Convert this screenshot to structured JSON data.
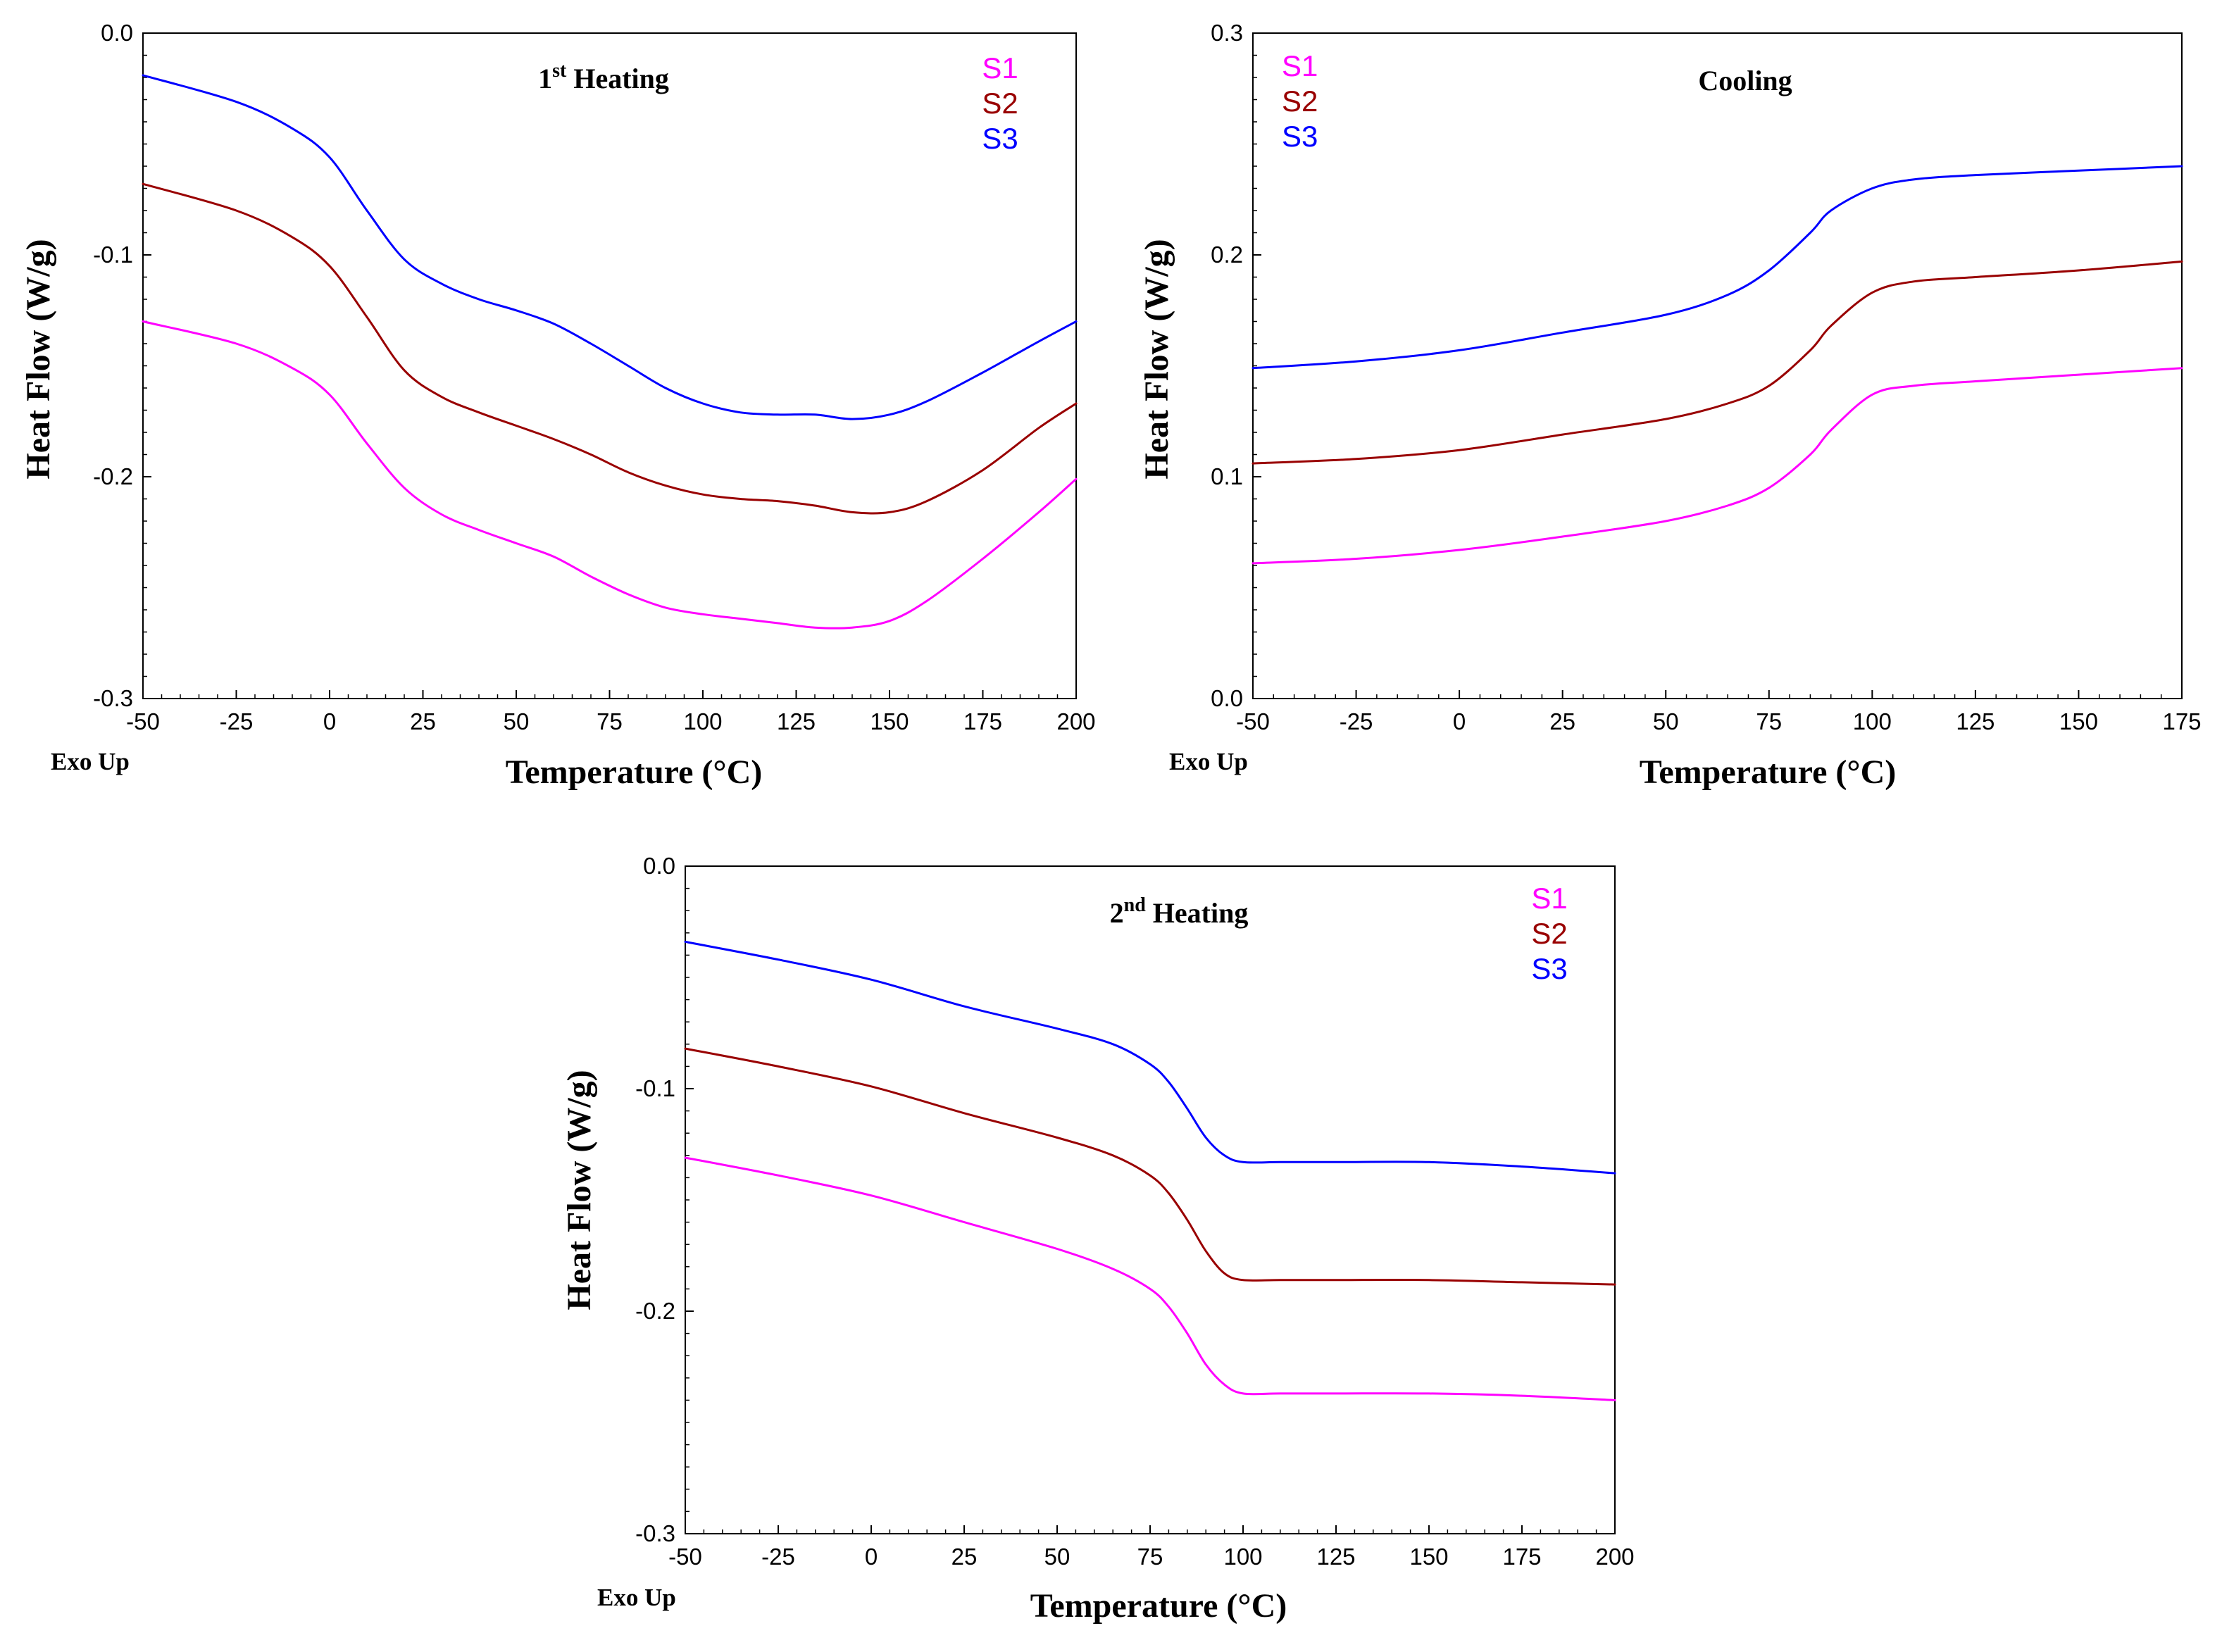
{
  "figure": {
    "exo_label": "Exo Up",
    "ylabel": "Heat Flow (W/g)",
    "xlabel": "Temperature (°C)"
  },
  "colors": {
    "S1": "#ff00ff",
    "S2": "#990000",
    "S3": "#0000ff"
  },
  "chart_data": [
    {
      "type": "line",
      "title": "1st Heating",
      "title_main": "1",
      "title_sup": "st",
      "title_rest": " Heating",
      "xlabel": "Temperature (°C)",
      "ylabel": "Heat Flow (W/g)",
      "xlim": [
        -50,
        200
      ],
      "ylim": [
        -0.3,
        0.0
      ],
      "xticks": [
        -50,
        -25,
        0,
        25,
        50,
        75,
        100,
        125,
        150,
        175,
        200
      ],
      "xtick_labels": [
        "-50",
        "-25",
        "0",
        "25",
        "50",
        "75",
        "100",
        "125",
        "150",
        "175",
        "200"
      ],
      "yticks": [
        -0.3,
        -0.2,
        -0.1,
        0.0
      ],
      "ytick_labels": [
        "-0.3",
        "-0.2",
        "-0.1",
        "0.0"
      ],
      "legend": [
        "S1",
        "S2",
        "S3"
      ],
      "legend_position": "top-right",
      "series": [
        {
          "name": "S1",
          "x": [
            -50,
            -25,
            -10,
            0,
            10,
            20,
            30,
            40,
            50,
            60,
            70,
            80,
            90,
            100,
            110,
            120,
            130,
            140,
            150,
            160,
            175,
            190,
            200
          ],
          "y": [
            -0.13,
            -0.14,
            -0.151,
            -0.163,
            -0.185,
            -0.205,
            -0.217,
            -0.224,
            -0.23,
            -0.236,
            -0.245,
            -0.253,
            -0.259,
            -0.262,
            -0.264,
            -0.266,
            -0.268,
            -0.268,
            -0.265,
            -0.256,
            -0.237,
            -0.216,
            -0.201
          ]
        },
        {
          "name": "S2",
          "x": [
            -50,
            -25,
            -10,
            0,
            10,
            20,
            30,
            40,
            50,
            60,
            70,
            80,
            90,
            100,
            110,
            120,
            130,
            140,
            150,
            160,
            175,
            190,
            200
          ],
          "y": [
            -0.068,
            -0.08,
            -0.092,
            -0.105,
            -0.128,
            -0.152,
            -0.164,
            -0.171,
            -0.177,
            -0.183,
            -0.19,
            -0.198,
            -0.204,
            -0.208,
            -0.21,
            -0.211,
            -0.213,
            -0.216,
            -0.216,
            -0.211,
            -0.197,
            -0.178,
            -0.167
          ]
        },
        {
          "name": "S3",
          "x": [
            -50,
            -25,
            -10,
            0,
            10,
            20,
            30,
            40,
            50,
            60,
            70,
            80,
            90,
            100,
            110,
            120,
            130,
            140,
            150,
            160,
            175,
            190,
            200
          ],
          "y": [
            -0.019,
            -0.031,
            -0.043,
            -0.056,
            -0.08,
            -0.102,
            -0.113,
            -0.12,
            -0.125,
            -0.131,
            -0.14,
            -0.15,
            -0.16,
            -0.167,
            -0.171,
            -0.172,
            -0.172,
            -0.174,
            -0.172,
            -0.166,
            -0.153,
            -0.139,
            -0.13
          ]
        }
      ]
    },
    {
      "type": "line",
      "title": "Cooling",
      "title_main": "Cooling",
      "title_sup": "",
      "title_rest": "",
      "xlabel": "Temperature (°C)",
      "ylabel": "Heat Flow (W/g)",
      "xlim": [
        -50,
        175
      ],
      "ylim": [
        0.0,
        0.3
      ],
      "xticks": [
        -50,
        -25,
        0,
        25,
        50,
        75,
        100,
        125,
        150,
        175
      ],
      "xtick_labels": [
        "-50",
        "-25",
        "0",
        "25",
        "50",
        "75",
        "100",
        "125",
        "150",
        "175"
      ],
      "yticks": [
        0.0,
        0.1,
        0.2,
        0.3
      ],
      "ytick_labels": [
        "0.0",
        "0.1",
        "0.2",
        "0.3"
      ],
      "legend": [
        "S1",
        "S2",
        "S3"
      ],
      "legend_position": "top-left",
      "series": [
        {
          "name": "S1",
          "x": [
            -50,
            -25,
            0,
            25,
            50,
            65,
            75,
            85,
            90,
            100,
            110,
            125,
            150,
            175
          ],
          "y": [
            0.061,
            0.063,
            0.067,
            0.073,
            0.08,
            0.087,
            0.095,
            0.11,
            0.121,
            0.137,
            0.141,
            0.143,
            0.146,
            0.149
          ]
        },
        {
          "name": "S2",
          "x": [
            -50,
            -25,
            0,
            25,
            50,
            65,
            75,
            85,
            90,
            100,
            110,
            125,
            150,
            175
          ],
          "y": [
            0.106,
            0.108,
            0.112,
            0.119,
            0.126,
            0.133,
            0.141,
            0.157,
            0.168,
            0.183,
            0.188,
            0.19,
            0.193,
            0.197
          ]
        },
        {
          "name": "S3",
          "x": [
            -50,
            -25,
            0,
            25,
            50,
            65,
            75,
            85,
            90,
            100,
            110,
            125,
            150,
            175
          ],
          "y": [
            0.149,
            0.152,
            0.157,
            0.165,
            0.173,
            0.182,
            0.193,
            0.21,
            0.22,
            0.23,
            0.234,
            0.236,
            0.238,
            0.24
          ]
        }
      ]
    },
    {
      "type": "line",
      "title": "2nd Heating",
      "title_main": "2",
      "title_sup": "nd",
      "title_rest": " Heating",
      "xlabel": "Temperature (°C)",
      "ylabel": "Heat Flow (W/g)",
      "xlim": [
        -50,
        200
      ],
      "ylim": [
        -0.3,
        0.0
      ],
      "xticks": [
        -50,
        -25,
        0,
        25,
        50,
        75,
        100,
        125,
        150,
        175,
        200
      ],
      "xtick_labels": [
        "-50",
        "-25",
        "0",
        "25",
        "50",
        "75",
        "100",
        "125",
        "150",
        "175",
        "200"
      ],
      "yticks": [
        -0.3,
        -0.2,
        -0.1,
        0.0
      ],
      "ytick_labels": [
        "-0.3",
        "-0.2",
        "-0.1",
        "0.0"
      ],
      "legend": [
        "S1",
        "S2",
        "S3"
      ],
      "legend_position": "top-right",
      "series": [
        {
          "name": "S1",
          "x": [
            -50,
            -25,
            0,
            25,
            50,
            65,
            75,
            80,
            85,
            90,
            95,
            100,
            110,
            125,
            150,
            175,
            200
          ],
          "y": [
            -0.131,
            -0.139,
            -0.148,
            -0.16,
            -0.172,
            -0.181,
            -0.19,
            -0.198,
            -0.21,
            -0.224,
            -0.233,
            -0.237,
            -0.237,
            -0.237,
            -0.237,
            -0.238,
            -0.24
          ]
        },
        {
          "name": "S2",
          "x": [
            -50,
            -25,
            0,
            25,
            50,
            65,
            75,
            80,
            85,
            90,
            95,
            100,
            110,
            125,
            150,
            175,
            200
          ],
          "y": [
            -0.082,
            -0.09,
            -0.099,
            -0.111,
            -0.122,
            -0.13,
            -0.139,
            -0.147,
            -0.159,
            -0.173,
            -0.183,
            -0.186,
            -0.186,
            -0.186,
            -0.186,
            -0.187,
            -0.188
          ]
        },
        {
          "name": "S3",
          "x": [
            -50,
            -25,
            0,
            25,
            50,
            65,
            75,
            80,
            85,
            90,
            95,
            100,
            110,
            125,
            150,
            175,
            200
          ],
          "y": [
            -0.034,
            -0.042,
            -0.051,
            -0.063,
            -0.073,
            -0.08,
            -0.089,
            -0.097,
            -0.109,
            -0.122,
            -0.13,
            -0.133,
            -0.133,
            -0.133,
            -0.133,
            -0.135,
            -0.138
          ]
        }
      ]
    }
  ]
}
